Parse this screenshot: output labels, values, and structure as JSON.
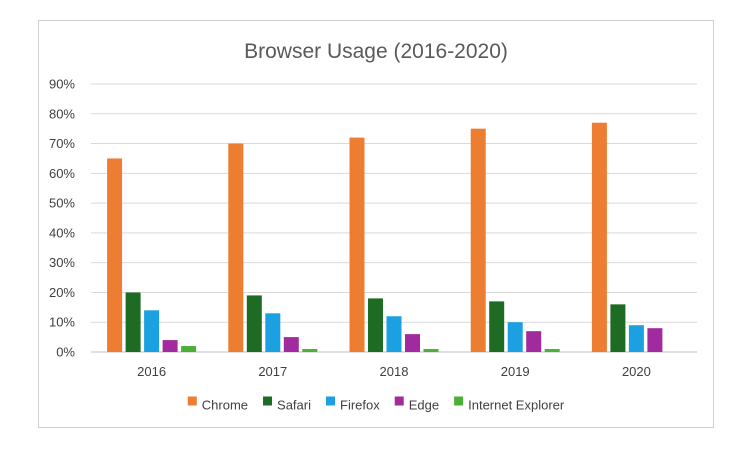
{
  "chart_data": {
    "type": "bar",
    "title": "Browser Usage (2016-2020)",
    "xlabel": "",
    "ylabel": "",
    "categories": [
      "2016",
      "2017",
      "2018",
      "2019",
      "2020"
    ],
    "ylim": [
      0,
      90
    ],
    "yticks": [
      0,
      10,
      20,
      30,
      40,
      50,
      60,
      70,
      80,
      90
    ],
    "ytick_labels": [
      "0%",
      "10%",
      "20%",
      "30%",
      "40%",
      "50%",
      "60%",
      "70%",
      "80%",
      "90%"
    ],
    "grid": true,
    "legend_position": "bottom",
    "series": [
      {
        "name": "Chrome",
        "color": "#ED7D31",
        "values": [
          65,
          70,
          72,
          75,
          77
        ]
      },
      {
        "name": "Safari",
        "color": "#1E6B23",
        "values": [
          20,
          19,
          18,
          17,
          16
        ]
      },
      {
        "name": "Firefox",
        "color": "#1BA1E2",
        "values": [
          14,
          13,
          12,
          10,
          9
        ]
      },
      {
        "name": "Edge",
        "color": "#A12B9E",
        "values": [
          4,
          5,
          6,
          7,
          8
        ]
      },
      {
        "name": "Internet Explorer",
        "color": "#4CAF3A",
        "values": [
          2,
          1,
          1,
          1,
          0
        ]
      }
    ]
  }
}
